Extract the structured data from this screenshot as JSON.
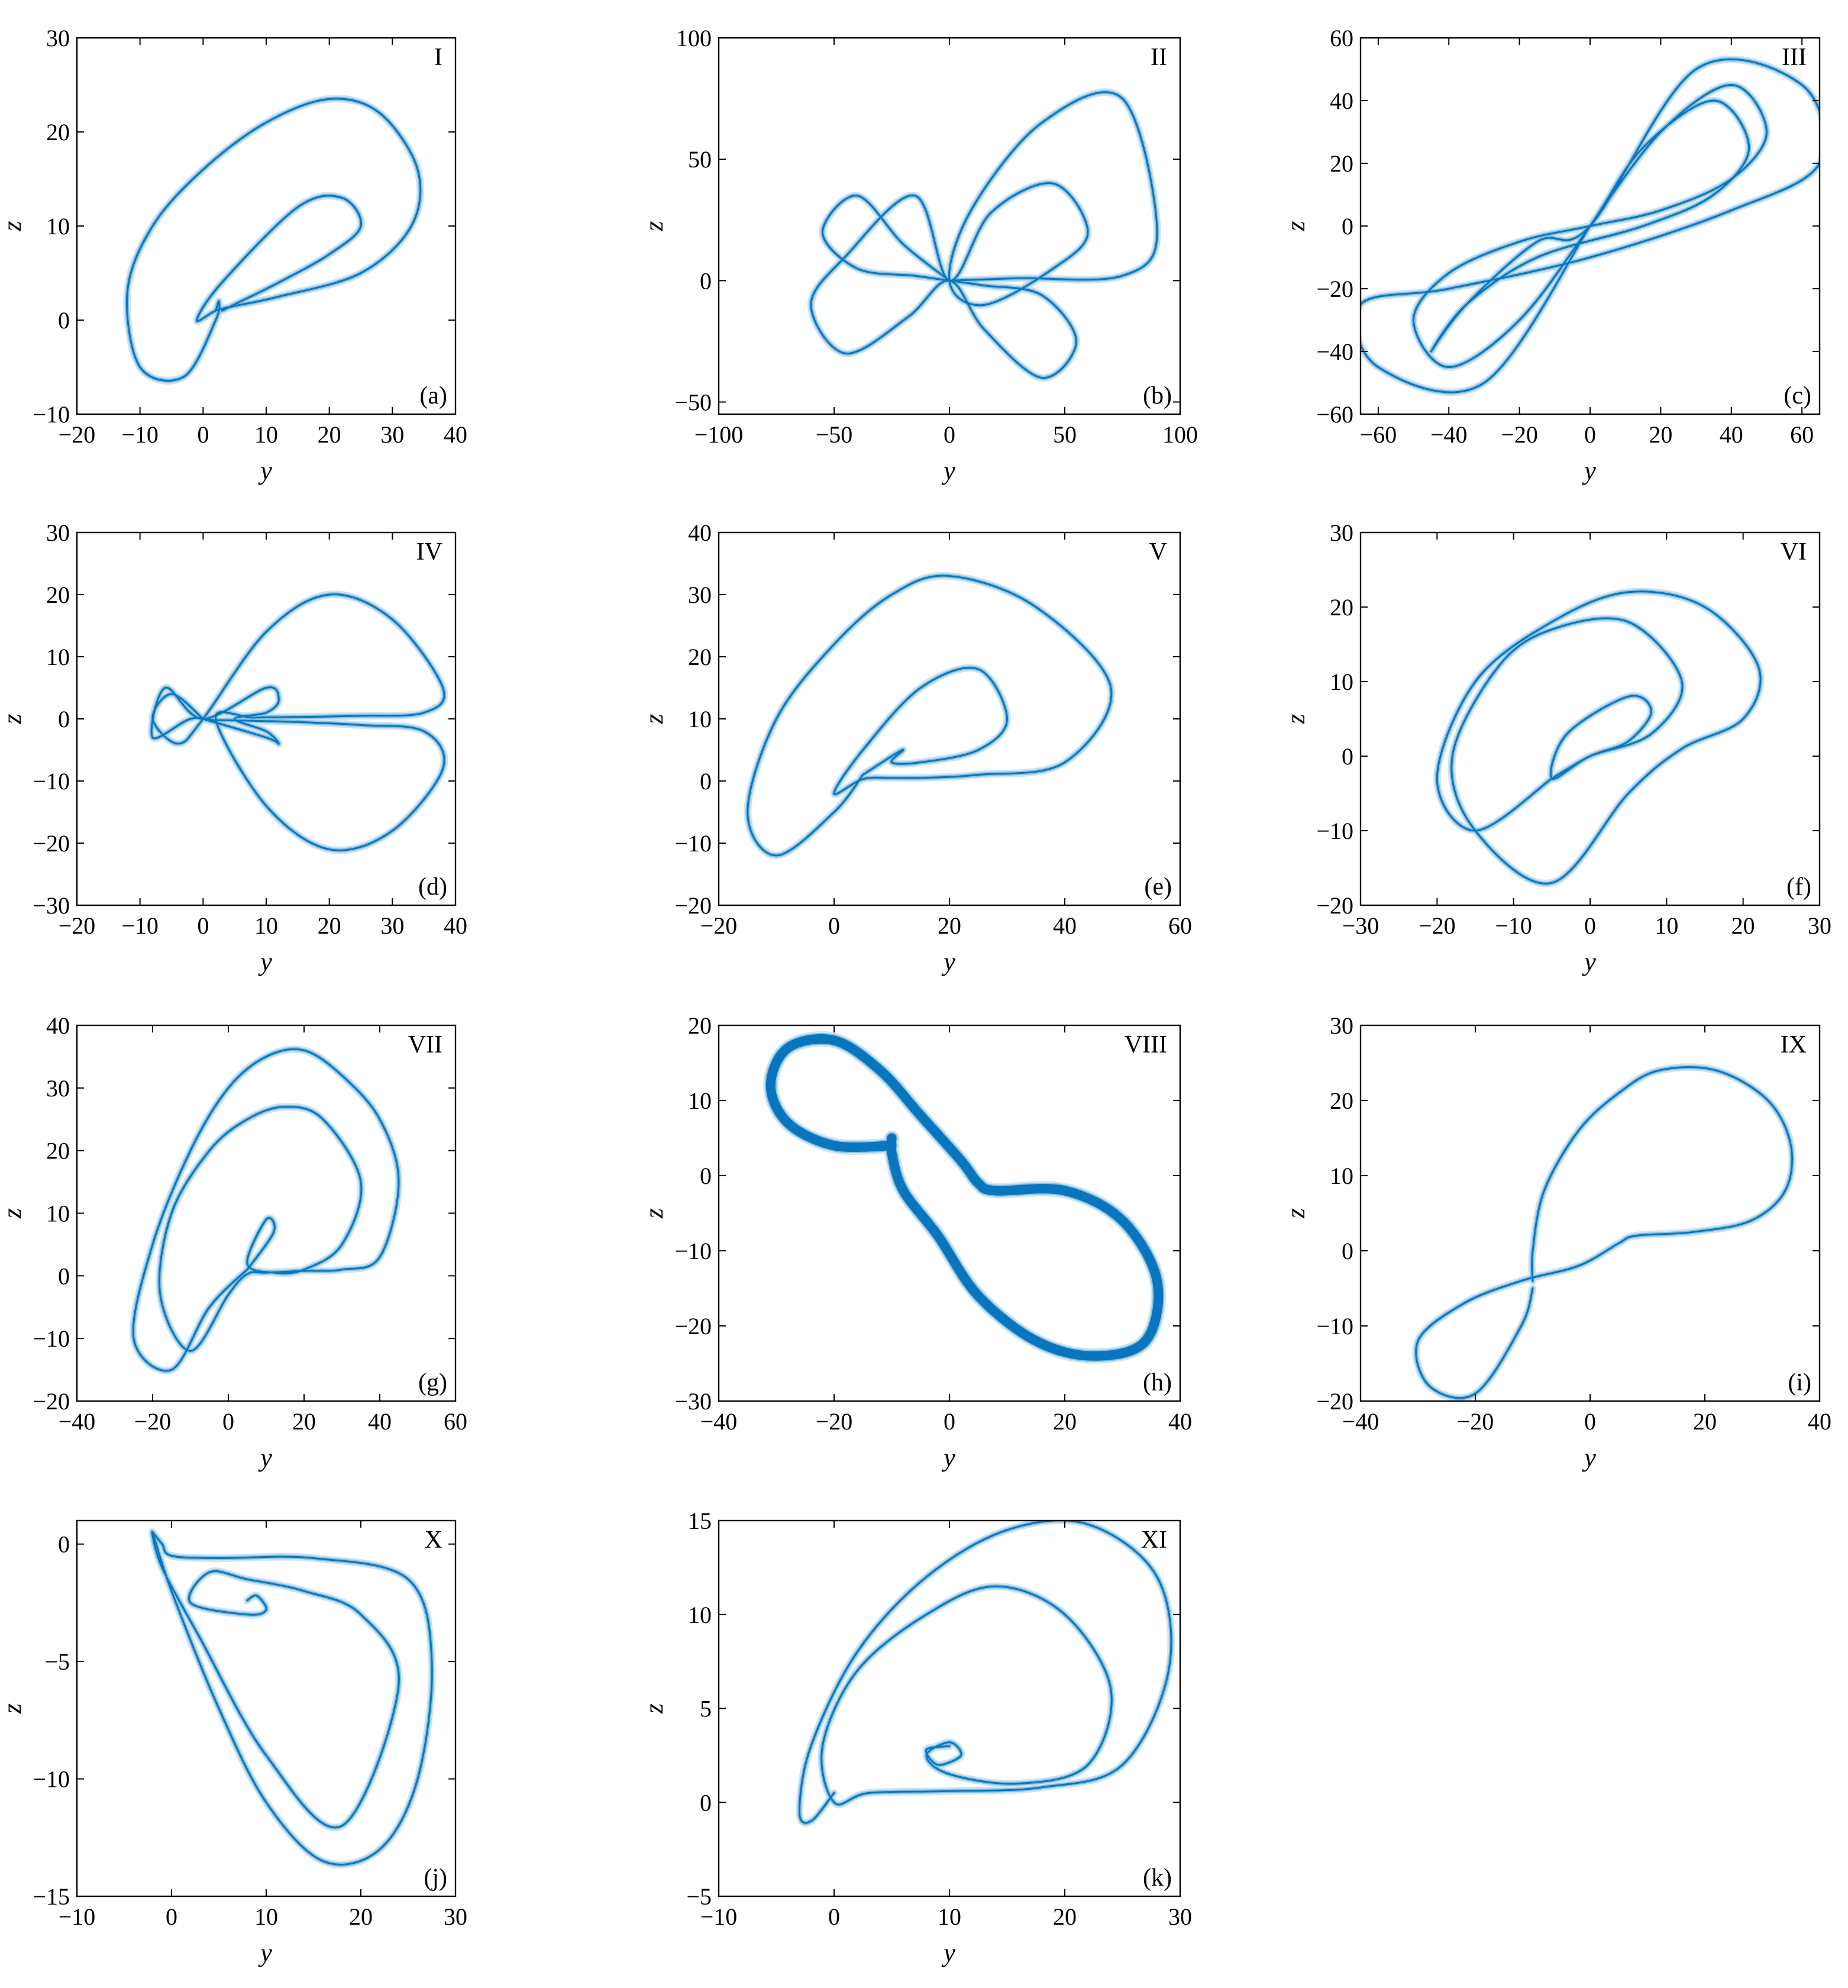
{
  "figure": {
    "x_axis_label": "y",
    "y_axis_label": "z",
    "line_color": "#0072BD"
  },
  "chart_data": [
    {
      "type": "line",
      "panel": "(a)",
      "roman": "I",
      "xlabel": "y",
      "ylabel": "z",
      "xlim": [
        -20,
        40
      ],
      "ylim": [
        -10,
        30
      ],
      "xticks": [
        -20,
        -10,
        0,
        10,
        20,
        30,
        40
      ],
      "yticks": [
        -10,
        0,
        10,
        20,
        30
      ],
      "series": [
        {
          "x": [
            2,
            2.5,
            2,
            -3,
            -10,
            -12,
            -8,
            0,
            10,
            20,
            28,
            34,
            33,
            25,
            12,
            5,
            2,
            -1,
            3,
            15,
            22,
            25,
            20,
            12,
            6,
            3
          ],
          "y": [
            1,
            2,
            0,
            -6,
            -5,
            3,
            10,
            16,
            21,
            23.5,
            22,
            16,
            10,
            5,
            2.5,
            1.5,
            1,
            0,
            4,
            12,
            13,
            10,
            7,
            4,
            2,
            1
          ]
        }
      ]
    },
    {
      "type": "line",
      "panel": "(b)",
      "roman": "II",
      "xlabel": "y",
      "ylabel": "z",
      "xlim": [
        -100,
        100
      ],
      "ylim": [
        -55,
        100
      ],
      "xticks": [
        -100,
        -50,
        0,
        50,
        100
      ],
      "yticks": [
        -50,
        0,
        50,
        100
      ],
      "series": [
        {
          "x": [
            0,
            -20,
            -40,
            -55,
            -40,
            -15,
            0,
            15,
            40,
            55,
            40,
            15,
            0,
            -18,
            -45,
            -60,
            -45,
            -15,
            0,
            18,
            45,
            60,
            45,
            15,
            0,
            10,
            40,
            75,
            90,
            75,
            30,
            0
          ],
          "y": [
            0,
            15,
            35,
            20,
            5,
            2,
            0,
            -2,
            -6,
            -25,
            -40,
            -20,
            0,
            -15,
            -30,
            -10,
            10,
            35,
            0,
            28,
            40,
            20,
            5,
            -10,
            0,
            30,
            65,
            75,
            20,
            2,
            1,
            0
          ]
        }
      ]
    },
    {
      "type": "line",
      "panel": "(c)",
      "roman": "III",
      "xlabel": "y",
      "ylabel": "z",
      "xlim": [
        -65,
        65
      ],
      "ylim": [
        -60,
        60
      ],
      "xticks": [
        -60,
        -40,
        -20,
        0,
        20,
        40,
        60
      ],
      "yticks": [
        -60,
        -40,
        -20,
        0,
        20,
        40,
        60
      ],
      "series": [
        {
          "x": [
            0,
            20,
            40,
            50,
            40,
            20,
            0,
            -20,
            -40,
            -50,
            -40,
            -20,
            0,
            15,
            35,
            45,
            35,
            15,
            -15,
            -35,
            -45,
            -35,
            -15,
            0,
            30,
            60,
            65,
            40,
            0,
            -40,
            -65,
            -60,
            -30,
            0
          ],
          "y": [
            0,
            30,
            45,
            30,
            15,
            5,
            0,
            -5,
            -15,
            -30,
            -45,
            -30,
            0,
            25,
            40,
            25,
            10,
            0,
            -10,
            -25,
            -40,
            -25,
            -5,
            0,
            50,
            45,
            20,
            5,
            -10,
            -20,
            -25,
            -45,
            -50,
            0
          ]
        }
      ]
    },
    {
      "type": "line",
      "panel": "(d)",
      "roman": "IV",
      "xlabel": "y",
      "ylabel": "z",
      "xlim": [
        -20,
        40
      ],
      "ylim": [
        -30,
        30
      ],
      "xticks": [
        -20,
        -10,
        0,
        10,
        20,
        30,
        40
      ],
      "yticks": [
        -30,
        -20,
        -10,
        0,
        10,
        20,
        30
      ],
      "series": [
        {
          "x": [
            0,
            -5,
            -8,
            -4,
            0,
            10,
            20,
            30,
            38,
            35,
            25,
            15,
            8,
            2,
            10,
            20,
            30,
            38,
            35,
            25,
            15,
            8,
            2,
            -2,
            -8,
            -6,
            0,
            10,
            12,
            10,
            5,
            10,
            12,
            10,
            0
          ],
          "y": [
            0,
            4,
            0,
            -4,
            0,
            14,
            20,
            16,
            5,
            1,
            0.5,
            0.3,
            0.2,
            0,
            -14,
            -21,
            -18,
            -8,
            -2,
            -1,
            -0.5,
            -0.3,
            -0.2,
            0,
            -3,
            5,
            0,
            5,
            3,
            1,
            0,
            -2,
            -4,
            -3,
            0
          ]
        }
      ]
    },
    {
      "type": "line",
      "panel": "(e)",
      "roman": "V",
      "xlabel": "y",
      "ylabel": "z",
      "xlim": [
        -20,
        60
      ],
      "ylim": [
        -20,
        40
      ],
      "xticks": [
        -20,
        0,
        20,
        40,
        60
      ],
      "yticks": [
        -20,
        -10,
        0,
        10,
        20,
        30,
        40
      ],
      "series": [
        {
          "x": [
            5,
            0,
            -10,
            -15,
            -10,
            0,
            10,
            20,
            35,
            48,
            40,
            25,
            15,
            10,
            5,
            0,
            5,
            15,
            25,
            30,
            25,
            15,
            10,
            12,
            10,
            5
          ],
          "y": [
            1,
            -5,
            -12,
            -5,
            10,
            22,
            30,
            33,
            28,
            15,
            3,
            1,
            0.5,
            0.5,
            0.3,
            -2,
            5,
            15,
            18,
            10,
            5,
            3,
            3,
            5,
            4,
            1
          ]
        }
      ]
    },
    {
      "type": "line",
      "panel": "(f)",
      "roman": "VI",
      "xlabel": "y",
      "ylabel": "z",
      "xlim": [
        -30,
        30
      ],
      "ylim": [
        -20,
        30
      ],
      "xticks": [
        -30,
        -20,
        -10,
        0,
        10,
        20,
        30
      ],
      "yticks": [
        -20,
        -10,
        0,
        10,
        20,
        30
      ],
      "series": [
        {
          "x": [
            -5,
            -15,
            -20,
            -15,
            -5,
            5,
            15,
            22,
            20,
            12,
            5,
            -5,
            -15,
            -18,
            -12,
            -5,
            5,
            12,
            8,
            0,
            -5,
            -3,
            5,
            8,
            5,
            0,
            -5
          ],
          "y": [
            -3,
            -10,
            -3,
            10,
            18,
            22,
            20,
            12,
            5,
            1,
            -5,
            -17,
            -10,
            0,
            12,
            17,
            18,
            10,
            3,
            0,
            -3,
            3,
            8,
            6,
            2,
            0,
            -3
          ]
        }
      ]
    },
    {
      "type": "line",
      "panel": "(g)",
      "roman": "VII",
      "xlabel": "y",
      "ylabel": "z",
      "xlim": [
        -40,
        60
      ],
      "ylim": [
        -20,
        40
      ],
      "xticks": [
        -40,
        -20,
        0,
        20,
        40,
        60
      ],
      "yticks": [
        -20,
        -10,
        0,
        10,
        20,
        30,
        40
      ],
      "series": [
        {
          "x": [
            5,
            -5,
            -15,
            -25,
            -20,
            -10,
            0,
            10,
            20,
            30,
            40,
            45,
            40,
            30,
            20,
            10,
            5,
            0,
            -10,
            -18,
            -15,
            -5,
            5,
            15,
            25,
            35,
            30,
            20,
            12,
            5,
            10,
            12,
            5
          ],
          "y": [
            1,
            -5,
            -15,
            -10,
            5,
            20,
            30,
            35,
            36,
            32,
            25,
            15,
            3,
            1,
            0.8,
            0.5,
            0.3,
            -3,
            -12,
            -3,
            10,
            20,
            25,
            27,
            25,
            15,
            5,
            1,
            0.5,
            2,
            9,
            7,
            1
          ]
        }
      ]
    },
    {
      "type": "line",
      "panel": "(h)",
      "roman": "VIII",
      "xlabel": "y",
      "ylabel": "z",
      "xlim": [
        -40,
        40
      ],
      "ylim": [
        -30,
        20
      ],
      "xticks": [
        -40,
        -20,
        0,
        20,
        40
      ],
      "yticks": [
        -30,
        -20,
        -10,
        0,
        10,
        20
      ],
      "series": [
        {
          "x": [
            -10,
            -20,
            -28,
            -31,
            -28,
            -20,
            -12,
            -5,
            2,
            5,
            8,
            20,
            30,
            36,
            34,
            25,
            15,
            5,
            -2,
            -8,
            -10,
            -10
          ],
          "y": [
            4,
            4,
            7,
            12,
            17,
            18,
            14,
            8,
            2,
            -1,
            -2,
            -2,
            -6,
            -14,
            -22,
            -24,
            -22,
            -16,
            -8,
            -2,
            3,
            5
          ]
        }
      ]
    },
    {
      "type": "line",
      "panel": "(i)",
      "roman": "IX",
      "xlabel": "y",
      "ylabel": "z",
      "xlim": [
        -40,
        40
      ],
      "ylim": [
        -20,
        30
      ],
      "xticks": [
        -40,
        -20,
        0,
        20,
        40
      ],
      "yticks": [
        -20,
        -10,
        0,
        10,
        20,
        30
      ],
      "series": [
        {
          "x": [
            -10,
            -10,
            -8,
            -2,
            5,
            12,
            22,
            31,
            35,
            34,
            28,
            18,
            8,
            5,
            -2,
            -12,
            -22,
            -30,
            -28,
            -20,
            -12,
            -10
          ],
          "y": [
            -4,
            0,
            8,
            16,
            21,
            24,
            24,
            20,
            14,
            8,
            4,
            2.5,
            2,
            1,
            -2,
            -4,
            -7,
            -12,
            -18,
            -19,
            -10,
            -5
          ]
        }
      ]
    },
    {
      "type": "line",
      "panel": "(j)",
      "roman": "X",
      "xlabel": "y",
      "ylabel": "z",
      "xlim": [
        -10,
        30
      ],
      "ylim": [
        -15,
        1
      ],
      "xticks": [
        -10,
        0,
        10,
        20,
        30
      ],
      "yticks": [
        -15,
        -10,
        -5,
        0
      ],
      "series": [
        {
          "x": [
            -2,
            -1,
            0,
            5,
            15,
            25,
            27.5,
            26,
            22,
            16,
            10,
            5,
            0,
            -2,
            -1,
            3,
            10,
            18,
            24,
            20,
            14,
            8,
            4,
            2,
            8,
            10,
            9,
            8
          ],
          "y": [
            0.5,
            0,
            -0.5,
            -0.6,
            -0.6,
            -1.5,
            -5,
            -10,
            -13,
            -13.5,
            -11,
            -7,
            -2,
            0.5,
            -1,
            -4,
            -9,
            -12,
            -6,
            -3,
            -2,
            -1.5,
            -1.2,
            -2.5,
            -3,
            -2.8,
            -2.2,
            -2.4
          ]
        }
      ]
    },
    {
      "type": "line",
      "panel": "(k)",
      "roman": "XI",
      "xlabel": "y",
      "ylabel": "z",
      "xlim": [
        -10,
        30
      ],
      "ylim": [
        -5,
        15
      ],
      "xticks": [
        -10,
        0,
        10,
        20,
        30
      ],
      "yticks": [
        -5,
        0,
        5,
        10,
        15
      ],
      "series": [
        {
          "x": [
            0,
            -2,
            -3,
            -2,
            2,
            8,
            15,
            22,
            28,
            29,
            25,
            18,
            10,
            3,
            0,
            -1,
            2,
            8,
            14,
            20,
            24,
            22,
            16,
            10,
            8,
            10,
            11,
            9,
            8,
            10
          ],
          "y": [
            0.5,
            -1,
            -0.5,
            3,
            8,
            12,
            14.5,
            14.8,
            12,
            7,
            2,
            0.8,
            0.6,
            0.5,
            0,
            3,
            7,
            10,
            11.5,
            10,
            6,
            2,
            1,
            1.5,
            2.5,
            3.2,
            2.5,
            2,
            2.8,
            3
          ]
        }
      ]
    }
  ]
}
